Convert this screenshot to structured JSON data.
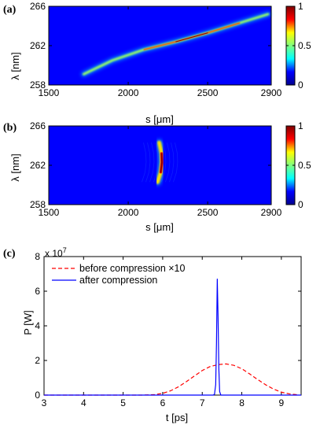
{
  "colorbar": {
    "ticks": [
      {
        "value": 0,
        "label": "0"
      },
      {
        "value": 0.5,
        "label": "0.5"
      },
      {
        "value": 1,
        "label": "1"
      }
    ],
    "stops": [
      "#00008f",
      "#0000ff",
      "#00ffff",
      "#7fff7f",
      "#ffff00",
      "#ff0000",
      "#800000"
    ]
  },
  "chart_data": [
    {
      "type": "heatmap",
      "panel_label": "(a)",
      "xlabel": "s [μm]",
      "ylabel": "λ [nm]",
      "xlim": [
        1500,
        2900
      ],
      "ylim": [
        258,
        266
      ],
      "xticks": [
        {
          "value": 1500,
          "label": "1500"
        },
        {
          "value": 2000,
          "label": "2000"
        },
        {
          "value": 2500,
          "label": "2500"
        },
        {
          "value": 2900,
          "label": "2900"
        }
      ],
      "yticks": [
        {
          "value": 258,
          "label": "258"
        },
        {
          "value": 262,
          "label": "262"
        },
        {
          "value": 266,
          "label": "266"
        }
      ],
      "background": "#0000ff",
      "feature": {
        "shape": "chirped streak",
        "ridge": [
          [
            1720,
            259.1
          ],
          [
            1900,
            260.5
          ],
          [
            2100,
            261.6
          ],
          [
            2300,
            262.4
          ],
          [
            2500,
            263.3
          ],
          [
            2700,
            264.3
          ],
          [
            2880,
            265.2
          ]
        ],
        "peak_intensity": 1
      }
    },
    {
      "type": "heatmap",
      "panel_label": "(b)",
      "xlabel": "s [μm]",
      "ylabel": "λ [nm]",
      "xlim": [
        1500,
        2900
      ],
      "ylim": [
        258,
        266
      ],
      "xticks": [
        {
          "value": 1500,
          "label": "1500"
        },
        {
          "value": 2000,
          "label": "2000"
        },
        {
          "value": 2500,
          "label": "2500"
        },
        {
          "value": 2900,
          "label": "2900"
        }
      ],
      "yticks": [
        {
          "value": 258,
          "label": "258"
        },
        {
          "value": 262,
          "label": "262"
        },
        {
          "value": 266,
          "label": "266"
        }
      ],
      "background": "#0000ff",
      "feature": {
        "shape": "compressed crescent",
        "ridge": [
          [
            2185,
            260.3
          ],
          [
            2205,
            261.3
          ],
          [
            2212,
            262.3
          ],
          [
            2210,
            263.2
          ],
          [
            2195,
            264.3
          ]
        ],
        "peak_intensity": 1
      }
    },
    {
      "type": "line",
      "panel_label": "(c)",
      "xlabel": "t [ps]",
      "ylabel": "P [W]",
      "y_exponent_label": "x 10",
      "y_exponent": "7",
      "xlim": [
        3,
        9.5
      ],
      "ylim": [
        0,
        8
      ],
      "xticks": [
        {
          "value": 3,
          "label": "3"
        },
        {
          "value": 4,
          "label": "4"
        },
        {
          "value": 5,
          "label": "5"
        },
        {
          "value": 6,
          "label": "6"
        },
        {
          "value": 7,
          "label": "7"
        },
        {
          "value": 8,
          "label": "8"
        },
        {
          "value": 9,
          "label": "9"
        }
      ],
      "yticks": [
        {
          "value": 0,
          "label": "0"
        },
        {
          "value": 2,
          "label": "2"
        },
        {
          "value": 4,
          "label": "4"
        },
        {
          "value": 6,
          "label": "6"
        },
        {
          "value": 8,
          "label": "8"
        }
      ],
      "legend_position": "top-left",
      "series": [
        {
          "name": "before compression ×10",
          "color": "#ff0000",
          "style": "dashed",
          "x": [
            3,
            5.5,
            5.8,
            6.0,
            6.2,
            6.4,
            6.6,
            6.8,
            7.0,
            7.2,
            7.4,
            7.6,
            7.8,
            8.0,
            8.2,
            8.4,
            8.6,
            8.8,
            9.0,
            9.2,
            9.4
          ],
          "y": [
            0,
            0,
            0.03,
            0.1,
            0.25,
            0.48,
            0.78,
            1.1,
            1.42,
            1.65,
            1.76,
            1.8,
            1.72,
            1.52,
            1.22,
            0.9,
            0.6,
            0.35,
            0.17,
            0.07,
            0.02
          ]
        },
        {
          "name": "after compression",
          "color": "#0000ff",
          "style": "solid",
          "x": [
            3,
            7.28,
            7.31,
            7.34,
            7.36,
            7.38,
            7.4,
            7.42,
            7.44,
            7.47,
            9.5
          ],
          "y": [
            0,
            0,
            0.05,
            0.6,
            3.0,
            6.7,
            4.5,
            1.5,
            0.2,
            0,
            0
          ]
        }
      ]
    }
  ]
}
